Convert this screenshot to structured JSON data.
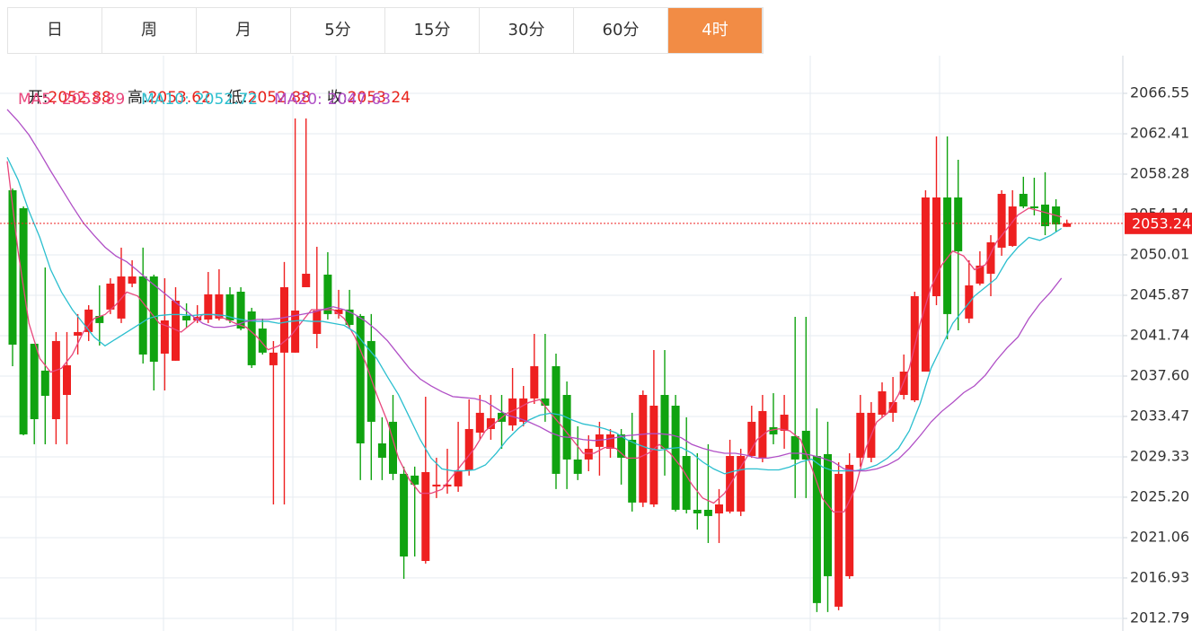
{
  "tabs": [
    "日",
    "周",
    "月",
    "5分",
    "15分",
    "30分",
    "60分",
    "4时"
  ],
  "active_tab": 7,
  "info_labels": [
    "开:",
    "高:",
    "低:",
    "收:"
  ],
  "chart_data": {
    "type": "candlestick",
    "up_color": "#ee2020",
    "down_color": "#10a310",
    "ylim": [
      2011.5,
      2070.41
    ],
    "yticks": [
      2066.55,
      2062.41,
      2058.28,
      2054.14,
      2050.01,
      2045.87,
      2041.74,
      {
        "value": 2037.6,
        "label": "2037.60"
      },
      2033.47,
      2029.33,
      {
        "value": 2025.2,
        "label": "2025.20"
      },
      2021.06,
      2016.93,
      2012.79
    ],
    "grid": true,
    "open": [
      2056.63,
      2054.79,
      2040.91,
      2038.16,
      2033.19,
      2035.67,
      2041.74,
      2042.11,
      2043.76,
      2044.41,
      2043.49,
      2047.07,
      2047.8,
      2047.8,
      2039.9,
      2039.17,
      2043.76,
      2043.3,
      2043.39,
      2043.49,
      2045.97,
      2046.24,
      2044.22,
      2042.47,
      2038.71,
      2040.0,
      2040.0,
      2046.7,
      2041.92,
      2047.99,
      2043.95,
      2044.41,
      2043.76,
      2041.19,
      2030.71,
      2032.92,
      2027.59,
      2027.41,
      2018.67,
      2026.3,
      2026.3,
      2026.3,
      2027.96,
      2031.81,
      2032.18,
      2033.84,
      2032.55,
      2032.92,
      2035.31,
      2035.31,
      2038.61,
      2035.67,
      2029.06,
      2029.06,
      2030.35,
      2030.16,
      2031.63,
      2031.08,
      2024.65,
      2024.46,
      2035.67,
      2034.57,
      2029.42,
      2023.91,
      2023.91,
      2023.54,
      2023.73,
      2023.73,
      2029.42,
      2029.24,
      2032.37,
      2032.0,
      2031.45,
      2032.0,
      2029.42,
      2029.61,
      2013.99,
      2017.11,
      2029.24,
      2029.24,
      2033.65,
      2033.84,
      2035.67,
      2035.12,
      2038.06,
      2045.78,
      2055.89,
      2055.89,
      2043.49,
      2047.07,
      2048.08,
      2050.75,
      2050.93,
      2056.26,
      2054.97,
      2055.16,
      2054.97,
      2052.88
    ],
    "high": [
      2056.81,
      2054.97,
      2040.91,
      2048.72,
      2042.11,
      2042.11,
      2043.95,
      2044.86,
      2046.89,
      2047.62,
      2050.75,
      2049.46,
      2050.75,
      2047.99,
      2047.62,
      2046.7,
      2045.05,
      2044.86,
      2048.26,
      2048.54,
      2046.7,
      2046.7,
      2044.59,
      2043.49,
      2041.19,
      2049.28,
      2063.98,
      2063.98,
      2050.84,
      2050.29,
      2046.43,
      2046.43,
      2043.95,
      2043.95,
      2033.38,
      2035.67,
      2028.33,
      2028.33,
      2035.49,
      2029.24,
      2030.16,
      2032.92,
      2035.21,
      2035.67,
      2035.67,
      2035.67,
      2038.43,
      2036.59,
      2041.92,
      2041.92,
      2039.9,
      2037.05,
      2032.46,
      2031.54,
      2032.92,
      2032.18,
      2032.18,
      2033.84,
      2036.13,
      2040.27,
      2040.27,
      2035.67,
      2033.38,
      2029.7,
      2030.62,
      2026.03,
      2031.08,
      2030.16,
      2034.57,
      2035.67,
      2035.85,
      2035.67,
      2043.67,
      2043.67,
      2034.3,
      2032.92,
      2028.78,
      2029.7,
      2035.67,
      2034.94,
      2036.96,
      2037.51,
      2039.81,
      2046.24,
      2056.63,
      2062.14,
      2062.14,
      2059.75,
      2049.46,
      2050.38,
      2052.03,
      2056.63,
      2056.63,
      2058.01,
      2057.91,
      2058.47,
      2055.71,
      2053.62
    ],
    "low": [
      2038.61,
      2031.54,
      2030.62,
      2030.62,
      2030.62,
      2030.62,
      2039.81,
      2041.19,
      2040.73,
      2043.95,
      2043.03,
      2046.7,
      2038.89,
      2036.13,
      2036.13,
      2039.17,
      2042.57,
      2043.03,
      2043.03,
      2043.3,
      2043.03,
      2042.29,
      2038.43,
      2039.81,
      2024.46,
      2024.46,
      2040.0,
      2046.7,
      2040.45,
      2043.39,
      2043.49,
      2042.57,
      2026.95,
      2026.95,
      2026.95,
      2026.95,
      2016.84,
      2019.13,
      2018.4,
      2025.11,
      2025.56,
      2025.75,
      2027.41,
      2031.08,
      2031.08,
      2030.16,
      2032.0,
      2032.46,
      2034.75,
      2032.92,
      2026.03,
      2026.03,
      2026.95,
      2027.86,
      2027.41,
      2029.24,
      2026.49,
      2023.73,
      2024.19,
      2024.19,
      2027.41,
      2023.73,
      2023.54,
      2021.89,
      2020.51,
      2020.51,
      2023.54,
      2023.27,
      2029.24,
      2028.78,
      2030.62,
      2030.16,
      2025.11,
      2025.11,
      2013.44,
      2013.44,
      2013.62,
      2016.84,
      2028.33,
      2028.78,
      2033.38,
      2032.92,
      2035.21,
      2034.94,
      2038.06,
      2044.86,
      2041.37,
      2042.29,
      2043.03,
      2046.89,
      2045.78,
      2049.92,
      2050.84,
      2054.79,
      2054.05,
      2052.03,
      2052.4,
      2052.88
    ],
    "close": [
      2040.82,
      2031.63,
      2033.19,
      2035.58,
      2041.19,
      2038.71,
      2042.11,
      2044.41,
      2043.03,
      2047.07,
      2047.8,
      2047.8,
      2039.81,
      2039.07,
      2043.3,
      2045.32,
      2043.3,
      2043.67,
      2045.97,
      2045.97,
      2043.3,
      2042.47,
      2038.71,
      2040.0,
      2040.0,
      2046.7,
      2044.31,
      2048.08,
      2044.31,
      2043.95,
      2044.41,
      2042.84,
      2030.71,
      2032.92,
      2029.24,
      2027.59,
      2019.13,
      2026.49,
      2027.77,
      2026.49,
      2026.49,
      2027.96,
      2032.18,
      2033.84,
      2033.29,
      2032.92,
      2035.31,
      2035.31,
      2038.61,
      2034.57,
      2027.59,
      2029.06,
      2027.59,
      2030.16,
      2031.63,
      2031.63,
      2029.24,
      2024.65,
      2035.67,
      2034.57,
      2030.16,
      2023.91,
      2023.91,
      2023.54,
      2023.27,
      2024.46,
      2029.42,
      2029.42,
      2032.92,
      2034.02,
      2031.63,
      2033.65,
      2029.06,
      2029.06,
      2014.36,
      2017.11,
      2027.59,
      2028.51,
      2033.84,
      2033.84,
      2036.04,
      2034.94,
      2038.06,
      2045.78,
      2055.89,
      2055.89,
      2043.95,
      2050.38,
      2046.89,
      2048.91,
      2051.3,
      2056.26,
      2054.97,
      2054.97,
      2054.79,
      2052.95,
      2053.13,
      2053.24
    ],
    "series": [
      {
        "name": "MA5:",
        "color": "#e8467c",
        "values": [
          2059.6,
          2050.4,
          2043.0,
          2039.4,
          2038.0,
          2038.4,
          2039.8,
          2042.1,
          2043.5,
          2043.9,
          2044.9,
          2046.2,
          2045.8,
          2044.4,
          2043.0,
          2042.6,
          2042.1,
          2043.0,
          2043.9,
          2043.9,
          2043.5,
          2043.0,
          2042.6,
          2041.6,
          2040.3,
          2040.7,
          2041.6,
          2043.0,
          2044.4,
          2044.4,
          2044.4,
          2043.5,
          2041.6,
          2038.9,
          2035.7,
          2032.9,
          2029.2,
          2027.0,
          2025.6,
          2025.6,
          2026.0,
          2027.4,
          2028.8,
          2030.2,
          2032.0,
          2032.9,
          2033.8,
          2034.3,
          2034.9,
          2035.2,
          2033.8,
          2032.5,
          2031.1,
          2029.7,
          2029.7,
          2030.3,
          2030.2,
          2029.2,
          2029.2,
          2029.7,
          2030.6,
          2029.7,
          2028.3,
          2026.5,
          2025.1,
          2024.6,
          2025.6,
          2027.4,
          2029.2,
          2031.1,
          2032.0,
          2032.2,
          2032.0,
          2031.1,
          2028.3,
          2025.1,
          2023.7,
          2023.7,
          2026.0,
          2030.2,
          2032.9,
          2033.8,
          2035.7,
          2038.4,
          2043.0,
          2046.7,
          2049.0,
          2050.4,
          2049.9,
          2048.5,
          2049.0,
          2051.3,
          2052.7,
          2054.1,
          2054.8,
          2054.5,
          2054.2,
          2053.89
        ]
      },
      {
        "name": "MA10:",
        "color": "#2bbfcf",
        "values": [
          2060.0,
          2057.7,
          2054.5,
          2051.8,
          2048.5,
          2046.2,
          2044.4,
          2043.0,
          2041.6,
          2040.7,
          2041.4,
          2042.1,
          2042.8,
          2043.5,
          2043.8,
          2043.9,
          2043.9,
          2043.8,
          2043.9,
          2043.9,
          2043.8,
          2043.5,
          2043.3,
          2043.2,
          2043.2,
          2043.0,
          2043.2,
          2043.3,
          2043.2,
          2043.2,
          2043.0,
          2042.8,
          2042.1,
          2040.7,
          2039.4,
          2037.5,
          2035.7,
          2033.4,
          2031.1,
          2029.2,
          2028.1,
          2027.9,
          2027.9,
          2028.0,
          2028.5,
          2029.7,
          2031.1,
          2032.2,
          2033.1,
          2033.6,
          2033.8,
          2033.6,
          2033.1,
          2032.7,
          2032.5,
          2032.2,
          2031.8,
          2031.1,
          2030.6,
          2030.2,
          2030.0,
          2030.2,
          2030.3,
          2029.7,
          2028.8,
          2028.1,
          2027.6,
          2027.9,
          2028.1,
          2028.1,
          2028.0,
          2028.0,
          2028.3,
          2028.8,
          2029.1,
          2028.3,
          2027.9,
          2027.9,
          2027.9,
          2028.1,
          2028.5,
          2029.2,
          2030.2,
          2032.0,
          2034.8,
          2038.4,
          2040.7,
          2043.0,
          2044.4,
          2045.8,
          2046.7,
          2047.6,
          2049.5,
          2050.8,
          2051.8,
          2051.5,
          2052.0,
          2052.72
        ]
      },
      {
        "name": "MA20:",
        "color": "#b04fc6",
        "values": [
          2064.9,
          2063.7,
          2062.3,
          2060.5,
          2058.6,
          2056.8,
          2055.0,
          2053.3,
          2052.0,
          2050.8,
          2049.9,
          2049.3,
          2048.4,
          2047.4,
          2046.5,
          2045.6,
          2044.7,
          2043.8,
          2043.0,
          2042.6,
          2042.6,
          2042.8,
          2043.2,
          2043.4,
          2043.4,
          2043.5,
          2043.7,
          2043.9,
          2044.1,
          2044.4,
          2044.7,
          2044.4,
          2043.9,
          2043.2,
          2042.3,
          2041.2,
          2039.8,
          2038.4,
          2037.3,
          2036.6,
          2036.0,
          2035.5,
          2035.4,
          2035.3,
          2035.0,
          2034.3,
          2033.6,
          2033.3,
          2032.9,
          2032.4,
          2031.8,
          2031.4,
          2031.3,
          2031.1,
          2031.0,
          2031.1,
          2031.3,
          2031.5,
          2031.6,
          2031.7,
          2031.7,
          2031.6,
          2031.3,
          2030.6,
          2030.2,
          2029.9,
          2029.7,
          2029.7,
          2029.5,
          2029.2,
          2029.2,
          2029.4,
          2029.7,
          2029.7,
          2029.5,
          2029.2,
          2028.8,
          2028.1,
          2027.9,
          2027.9,
          2028.1,
          2028.5,
          2029.1,
          2030.2,
          2031.5,
          2032.9,
          2034.0,
          2034.9,
          2035.9,
          2036.6,
          2037.7,
          2039.2,
          2040.5,
          2041.6,
          2043.5,
          2045.0,
          2046.2,
          2047.63
        ]
      }
    ]
  }
}
